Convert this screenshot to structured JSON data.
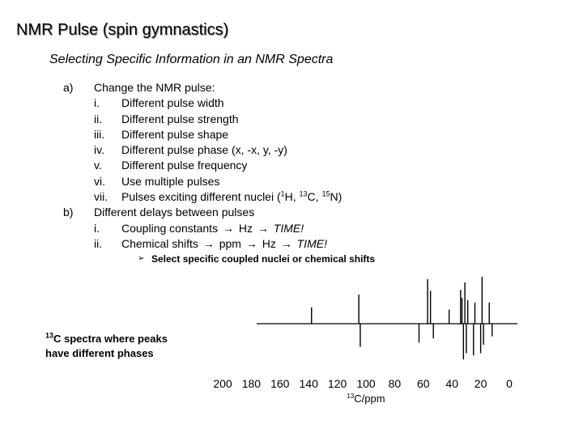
{
  "slide": {
    "title": "NMR Pulse (spin gymnastics)",
    "subtitle": "Selecting Specific Information in an NMR Spectra"
  },
  "outline": {
    "item_a": {
      "marker": "a)",
      "text": "Change the NMR pulse:",
      "subitems": [
        {
          "marker": "i.",
          "text": "Different pulse width"
        },
        {
          "marker": "ii.",
          "text": "Different pulse strength"
        },
        {
          "marker": "iii.",
          "text": "Different pulse shape"
        },
        {
          "marker": "iv.",
          "text": "Different pulse phase (x, -x, y, -y)"
        },
        {
          "marker": "v.",
          "text": "Different pulse frequency"
        },
        {
          "marker": "vi.",
          "text": "Use multiple pulses"
        },
        {
          "marker": "vii.",
          "text_prefix": "Pulses exciting different nuclei (",
          "nuc1_mass": "1",
          "nuc1_sym": "H, ",
          "nuc2_mass": "13",
          "nuc2_sym": "C, ",
          "nuc3_mass": "15",
          "nuc3_sym": "N)"
        }
      ]
    },
    "item_b": {
      "marker": "b)",
      "text": "Different delays between pulses",
      "subitems": [
        {
          "marker": "i.",
          "part1": "Coupling constants",
          "part2": "Hz",
          "emph": "TIME!"
        },
        {
          "marker": "ii.",
          "part1": "Chemical shifts",
          "part2": "ppm",
          "part3": "Hz",
          "emph": "TIME!"
        }
      ]
    },
    "arrow_glyph": "→",
    "bullet": {
      "marker": "➢",
      "text": "Select specific coupled nuclei or chemical shifts"
    }
  },
  "caption": {
    "mass": "13",
    "line1": "C spectra where peaks",
    "line2": "have different phases"
  },
  "chart_data": {
    "type": "line",
    "title": "",
    "xlabel_mass": "13",
    "xlabel": "C/ppm",
    "ylabel": "",
    "x_reversed": true,
    "xlim": [
      0,
      200
    ],
    "x_ticks": [
      200,
      180,
      160,
      140,
      120,
      100,
      80,
      60,
      40,
      20,
      0
    ],
    "peaks": [
      {
        "ppm": 138,
        "height": 0.35
      },
      {
        "ppm": 105,
        "height": 0.62
      },
      {
        "ppm": 104,
        "height": -0.55
      },
      {
        "ppm": 63,
        "height": -0.45
      },
      {
        "ppm": 57,
        "height": 0.95
      },
      {
        "ppm": 55,
        "height": 0.7
      },
      {
        "ppm": 53,
        "height": -0.35
      },
      {
        "ppm": 42,
        "height": 0.3
      },
      {
        "ppm": 34,
        "height": 0.72
      },
      {
        "ppm": 33,
        "height": 0.55
      },
      {
        "ppm": 32,
        "height": -0.85
      },
      {
        "ppm": 31,
        "height": 0.88
      },
      {
        "ppm": 30,
        "height": -0.7
      },
      {
        "ppm": 29,
        "height": 0.5
      },
      {
        "ppm": 25,
        "height": -0.75
      },
      {
        "ppm": 24,
        "height": 0.45
      },
      {
        "ppm": 20,
        "height": -0.7
      },
      {
        "ppm": 19,
        "height": 1.0
      },
      {
        "ppm": 18,
        "height": -0.5
      },
      {
        "ppm": 14,
        "height": 0.45
      },
      {
        "ppm": 12,
        "height": -0.3
      }
    ]
  }
}
